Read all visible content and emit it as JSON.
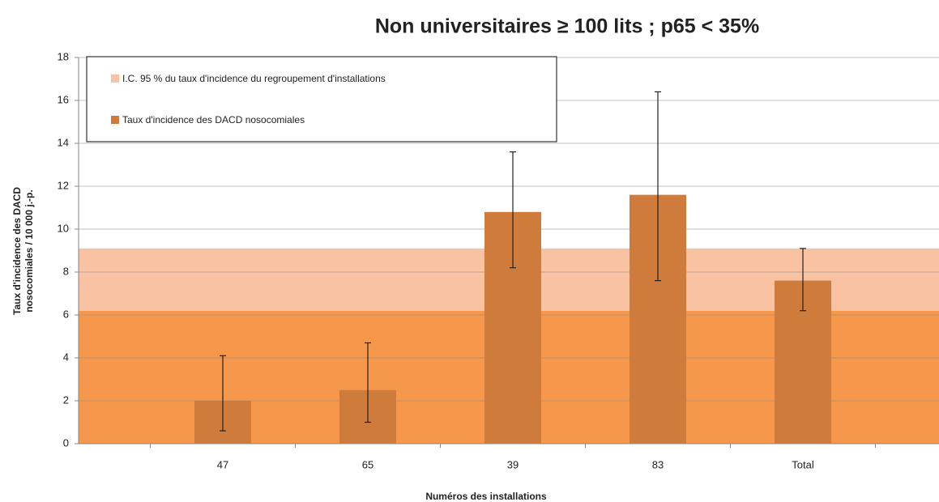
{
  "chart_data": {
    "type": "bar",
    "title": "Non universitaires ≥ 100 lits ; p65 < 35%",
    "ylabel": [
      "Taux d'incidence des DACD",
      "nosocomiales / 10 000 j.-p."
    ],
    "xlabel": "Numéros des installations",
    "categories": [
      "47",
      "65",
      "39",
      "83",
      "Total"
    ],
    "series": [
      {
        "name": "Taux d'incidence des DACD nosocomiales",
        "color": "#cf7b3c",
        "values": [
          2.0,
          2.5,
          10.8,
          11.6,
          7.6
        ],
        "ci_low": [
          0.6,
          1.0,
          8.2,
          7.6,
          6.2
        ],
        "ci_high": [
          4.1,
          4.7,
          13.6,
          16.4,
          9.1
        ]
      }
    ],
    "band": {
      "name": "I.C. 95 % du taux d'incidence du regroupement d'installations",
      "color": "#f8c2a3",
      "low": 6.2,
      "high": 9.1,
      "below_color": "#f5984b"
    },
    "ylim": [
      0,
      18
    ],
    "yticks": [
      0,
      2,
      4,
      6,
      8,
      10,
      12,
      14,
      16,
      18
    ],
    "grid": true
  }
}
